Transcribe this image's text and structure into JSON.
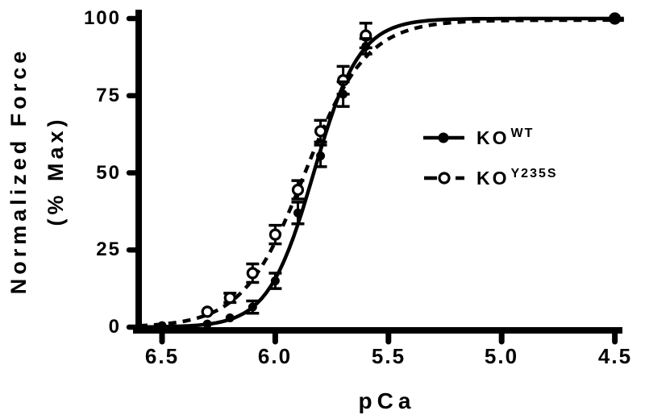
{
  "figure": {
    "background_color": "#ffffff",
    "ink_color": "#000000"
  },
  "chart_data": {
    "type": "scatter",
    "title": "",
    "xlabel": "pCa",
    "ylabel_line1": "Normalized Force",
    "ylabel_line2": "(% Max)",
    "x_axis_reversed": true,
    "xlim": [
      6.6,
      4.46
    ],
    "ylim": [
      0,
      100
    ],
    "grid": false,
    "x_ticks": [
      6.5,
      6.0,
      5.5,
      5.0,
      4.5
    ],
    "x_tick_labels": [
      "6.5",
      "6.0",
      "5.5",
      "5.0",
      "4.5"
    ],
    "y_ticks": [
      100,
      75,
      50,
      25,
      0
    ],
    "y_tick_labels": [
      "100",
      "75",
      "50",
      "25",
      "0"
    ],
    "legend_position": "right-middle",
    "legend": [
      {
        "base": "KO",
        "sup": "WT"
      },
      {
        "base": "KO",
        "sup": "Y235S"
      }
    ],
    "series": [
      {
        "name": "KO-WT",
        "legend_base": "KO",
        "legend_sup": "WT",
        "marker": "filled-circle",
        "line": "solid",
        "fit": {
          "pca50": 5.83,
          "hill": 4.3,
          "top": 100
        },
        "points": [
          {
            "pca": 6.5,
            "force": 0.5,
            "err": 0
          },
          {
            "pca": 6.3,
            "force": 1,
            "err": 0
          },
          {
            "pca": 6.2,
            "force": 3,
            "err": 0
          },
          {
            "pca": 6.1,
            "force": 6.5,
            "err": 2
          },
          {
            "pca": 6.0,
            "force": 15,
            "err": 2.5
          },
          {
            "pca": 5.9,
            "force": 37,
            "err": 3.5
          },
          {
            "pca": 5.8,
            "force": 55.5,
            "err": 3.5
          },
          {
            "pca": 5.7,
            "force": 75.5,
            "err": 4
          },
          {
            "pca": 5.6,
            "force": 91,
            "err": 2.5
          },
          {
            "pca": 4.5,
            "force": 100,
            "err": 0
          }
        ]
      },
      {
        "name": "KO-Y235S",
        "legend_base": "KO",
        "legend_sup": "Y235S",
        "marker": "open-circle",
        "line": "dashed",
        "fit": {
          "pca50": 5.87,
          "hill": 3.2,
          "top": 99.5
        },
        "points": [
          {
            "pca": 6.3,
            "force": 5,
            "err": 0
          },
          {
            "pca": 6.2,
            "force": 9.5,
            "err": 1.5
          },
          {
            "pca": 6.1,
            "force": 17.5,
            "err": 3
          },
          {
            "pca": 6.0,
            "force": 30,
            "err": 3
          },
          {
            "pca": 5.9,
            "force": 44.5,
            "err": 3
          },
          {
            "pca": 5.8,
            "force": 63.5,
            "err": 3.5
          },
          {
            "pca": 5.7,
            "force": 80,
            "err": 4.5
          },
          {
            "pca": 5.6,
            "force": 94.5,
            "err": 4
          },
          {
            "pca": 4.5,
            "force": 100,
            "err": 0
          }
        ]
      }
    ]
  }
}
